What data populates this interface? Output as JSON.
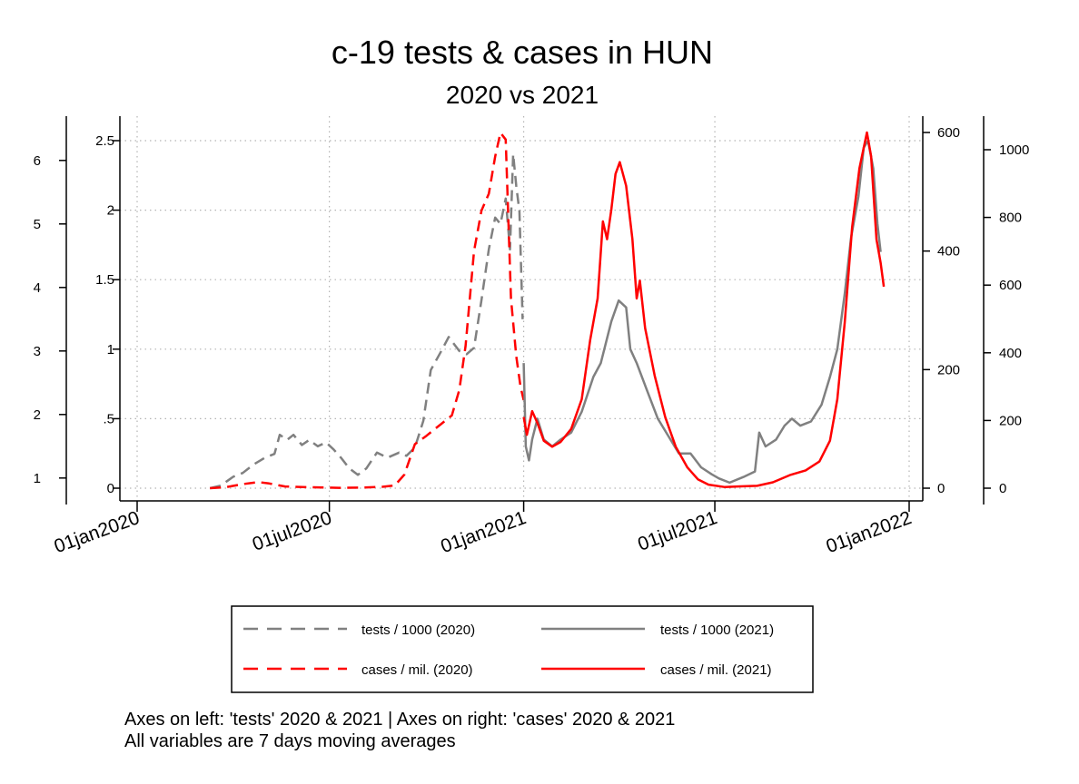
{
  "chart_data": {
    "type": "line",
    "title": "c-19 tests & cases in HUN",
    "subtitle": "2020 vs 2021",
    "notes": [
      "Axes on left: 'tests' 2020 & 2021 | Axes on right: 'cases' 2020 & 2021",
      "All variables are 7 days moving averages"
    ],
    "x_axis": {
      "ticks": [
        "01jan2020",
        "01jul2020",
        "01jan2021",
        "01jul2021",
        "01jan2022"
      ],
      "range": [
        "2020-01-01",
        "2022-01-01"
      ],
      "grid": true
    },
    "y_axes": [
      {
        "id": "tests2020",
        "side": "left-outer",
        "ticks": [
          "1",
          "2",
          "3",
          "4",
          "5",
          "6"
        ],
        "range": [
          0.84,
          6.34
        ],
        "grid": false
      },
      {
        "id": "tests2021",
        "side": "left-inner",
        "ticks": [
          "0",
          ".5",
          "1",
          "1.5",
          "2",
          "2.5"
        ],
        "range": [
          0,
          2.5
        ],
        "grid": true
      },
      {
        "id": "cases2021",
        "side": "right-inner",
        "ticks": [
          "0",
          "200",
          "400",
          "600"
        ],
        "range": [
          0,
          600
        ],
        "grid": false
      },
      {
        "id": "cases2020",
        "side": "right-outer",
        "ticks": [
          "0",
          "200",
          "400",
          "600",
          "800",
          "1000"
        ],
        "range": [
          0,
          1000
        ],
        "grid": false
      }
    ],
    "legend": {
      "placement": "bottom",
      "entries": [
        {
          "label": "tests / 1000 (2020)",
          "series": "tests_2020"
        },
        {
          "label": "tests / 1000 (2021)",
          "series": "tests_2021"
        },
        {
          "label": "cases / mil. (2020)",
          "series": "cases_2020"
        },
        {
          "label": "cases / mil. (2021)",
          "series": "cases_2021"
        }
      ]
    },
    "series": [
      {
        "id": "tests_2020",
        "name": "tests / 1000 (2020)",
        "axis": "tests2020",
        "color": "#808080",
        "dash": true,
        "points": [
          [
            "2020-03-10",
            0.84
          ],
          [
            "2020-03-20",
            0.88
          ],
          [
            "2020-04-01",
            1.02
          ],
          [
            "2020-04-10",
            1.08
          ],
          [
            "2020-04-20",
            1.21
          ],
          [
            "2020-05-01",
            1.32
          ],
          [
            "2020-05-10",
            1.38
          ],
          [
            "2020-05-15",
            1.68
          ],
          [
            "2020-05-22",
            1.6
          ],
          [
            "2020-05-28",
            1.68
          ],
          [
            "2020-06-05",
            1.52
          ],
          [
            "2020-06-12",
            1.6
          ],
          [
            "2020-06-20",
            1.5
          ],
          [
            "2020-06-28",
            1.56
          ],
          [
            "2020-07-05",
            1.45
          ],
          [
            "2020-07-12",
            1.32
          ],
          [
            "2020-07-20",
            1.15
          ],
          [
            "2020-07-28",
            1.05
          ],
          [
            "2020-08-05",
            1.15
          ],
          [
            "2020-08-15",
            1.4
          ],
          [
            "2020-08-25",
            1.32
          ],
          [
            "2020-09-05",
            1.4
          ],
          [
            "2020-09-12",
            1.35
          ],
          [
            "2020-09-20",
            1.48
          ],
          [
            "2020-09-28",
            1.9
          ],
          [
            "2020-10-05",
            2.7
          ],
          [
            "2020-10-15",
            3.0
          ],
          [
            "2020-10-22",
            3.22
          ],
          [
            "2020-11-01",
            3.0
          ],
          [
            "2020-11-08",
            2.95
          ],
          [
            "2020-11-15",
            3.05
          ],
          [
            "2020-11-22",
            3.8
          ],
          [
            "2020-11-29",
            4.6
          ],
          [
            "2020-12-05",
            5.1
          ],
          [
            "2020-12-10",
            5.0
          ],
          [
            "2020-12-15",
            5.4
          ],
          [
            "2020-12-19",
            4.6
          ],
          [
            "2020-12-22",
            6.1
          ],
          [
            "2020-12-25",
            5.6
          ],
          [
            "2020-12-28",
            5.2
          ],
          [
            "2020-12-31",
            3.5
          ]
        ]
      },
      {
        "id": "cases_2020",
        "name": "cases / mil. (2020)",
        "axis": "cases2020",
        "color": "#ff0000",
        "dash": true,
        "points": [
          [
            "2020-03-10",
            0
          ],
          [
            "2020-03-25",
            3
          ],
          [
            "2020-04-10",
            12
          ],
          [
            "2020-04-25",
            18
          ],
          [
            "2020-05-05",
            14
          ],
          [
            "2020-05-20",
            5
          ],
          [
            "2020-06-10",
            3
          ],
          [
            "2020-07-10",
            1
          ],
          [
            "2020-08-01",
            2
          ],
          [
            "2020-08-20",
            4
          ],
          [
            "2020-09-01",
            8
          ],
          [
            "2020-09-10",
            40
          ],
          [
            "2020-09-20",
            130
          ],
          [
            "2020-10-01",
            155
          ],
          [
            "2020-10-15",
            190
          ],
          [
            "2020-10-25",
            215
          ],
          [
            "2020-11-01",
            290
          ],
          [
            "2020-11-07",
            420
          ],
          [
            "2020-11-15",
            700
          ],
          [
            "2020-11-22",
            820
          ],
          [
            "2020-11-29",
            870
          ],
          [
            "2020-12-05",
            980
          ],
          [
            "2020-12-10",
            1050
          ],
          [
            "2020-12-15",
            1030
          ],
          [
            "2020-12-20",
            560
          ],
          [
            "2020-12-25",
            390
          ],
          [
            "2020-12-29",
            300
          ],
          [
            "2021-01-01",
            260
          ]
        ]
      },
      {
        "id": "tests_2021",
        "name": "tests / 1000 (2021)",
        "axis": "tests2021",
        "color": "#808080",
        "dash": false,
        "points": [
          [
            "2021-01-01",
            0.9
          ],
          [
            "2021-01-03",
            0.3
          ],
          [
            "2021-01-06",
            0.2
          ],
          [
            "2021-01-09",
            0.35
          ],
          [
            "2021-01-14",
            0.5
          ],
          [
            "2021-01-20",
            0.35
          ],
          [
            "2021-01-28",
            0.3
          ],
          [
            "2021-02-05",
            0.35
          ],
          [
            "2021-02-15",
            0.4
          ],
          [
            "2021-02-25",
            0.55
          ],
          [
            "2021-03-08",
            0.8
          ],
          [
            "2021-03-15",
            0.9
          ],
          [
            "2021-03-25",
            1.2
          ],
          [
            "2021-04-01",
            1.35
          ],
          [
            "2021-04-08",
            1.3
          ],
          [
            "2021-04-12",
            1.0
          ],
          [
            "2021-04-18",
            0.9
          ],
          [
            "2021-04-28",
            0.7
          ],
          [
            "2021-05-08",
            0.5
          ],
          [
            "2021-05-20",
            0.35
          ],
          [
            "2021-05-28",
            0.25
          ],
          [
            "2021-06-08",
            0.25
          ],
          [
            "2021-06-18",
            0.15
          ],
          [
            "2021-06-28",
            0.1
          ],
          [
            "2021-07-05",
            0.07
          ],
          [
            "2021-07-15",
            0.04
          ],
          [
            "2021-07-28",
            0.08
          ],
          [
            "2021-08-08",
            0.12
          ],
          [
            "2021-08-12",
            0.4
          ],
          [
            "2021-08-18",
            0.3
          ],
          [
            "2021-08-28",
            0.35
          ],
          [
            "2021-09-05",
            0.45
          ],
          [
            "2021-09-12",
            0.5
          ],
          [
            "2021-09-20",
            0.45
          ],
          [
            "2021-09-30",
            0.48
          ],
          [
            "2021-10-10",
            0.6
          ],
          [
            "2021-10-18",
            0.8
          ],
          [
            "2021-10-25",
            1.0
          ],
          [
            "2021-11-01",
            1.4
          ],
          [
            "2021-11-07",
            1.8
          ],
          [
            "2021-11-14",
            2.1
          ],
          [
            "2021-11-19",
            2.45
          ],
          [
            "2021-11-23",
            2.5
          ],
          [
            "2021-11-28",
            2.3
          ],
          [
            "2021-12-02",
            1.9
          ],
          [
            "2021-12-05",
            1.7
          ]
        ]
      },
      {
        "id": "cases_2021",
        "name": "cases / mil. (2021)",
        "axis": "cases2021",
        "color": "#ff0000",
        "dash": false,
        "points": [
          [
            "2021-01-01",
            120
          ],
          [
            "2021-01-04",
            90
          ],
          [
            "2021-01-09",
            130
          ],
          [
            "2021-01-14",
            110
          ],
          [
            "2021-01-20",
            80
          ],
          [
            "2021-01-28",
            70
          ],
          [
            "2021-02-05",
            78
          ],
          [
            "2021-02-15",
            100
          ],
          [
            "2021-02-25",
            150
          ],
          [
            "2021-03-05",
            250
          ],
          [
            "2021-03-12",
            320
          ],
          [
            "2021-03-17",
            450
          ],
          [
            "2021-03-21",
            420
          ],
          [
            "2021-03-25",
            470
          ],
          [
            "2021-03-29",
            530
          ],
          [
            "2021-04-02",
            550
          ],
          [
            "2021-04-08",
            510
          ],
          [
            "2021-04-14",
            420
          ],
          [
            "2021-04-18",
            320
          ],
          [
            "2021-04-21",
            350
          ],
          [
            "2021-04-26",
            270
          ],
          [
            "2021-05-05",
            190
          ],
          [
            "2021-05-15",
            120
          ],
          [
            "2021-05-25",
            70
          ],
          [
            "2021-06-05",
            35
          ],
          [
            "2021-06-15",
            15
          ],
          [
            "2021-06-25",
            6
          ],
          [
            "2021-07-10",
            2
          ],
          [
            "2021-07-25",
            3
          ],
          [
            "2021-08-10",
            4
          ],
          [
            "2021-08-25",
            10
          ],
          [
            "2021-09-10",
            22
          ],
          [
            "2021-09-25",
            30
          ],
          [
            "2021-10-08",
            45
          ],
          [
            "2021-10-18",
            80
          ],
          [
            "2021-10-25",
            150
          ],
          [
            "2021-11-01",
            280
          ],
          [
            "2021-11-08",
            440
          ],
          [
            "2021-11-15",
            540
          ],
          [
            "2021-11-22",
            600
          ],
          [
            "2021-11-26",
            560
          ],
          [
            "2021-12-01",
            420
          ],
          [
            "2021-12-05",
            380
          ],
          [
            "2021-12-08",
            340
          ]
        ]
      }
    ]
  }
}
